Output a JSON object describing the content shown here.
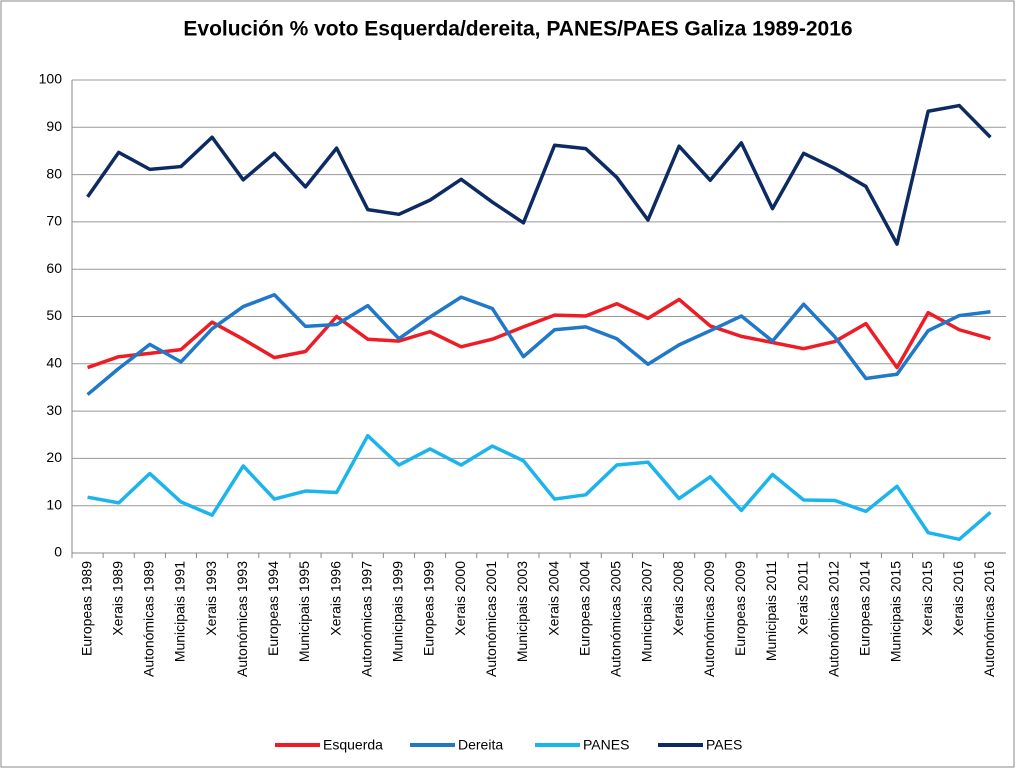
{
  "chart_data": {
    "type": "line",
    "title": "Evolución % voto Esquerda/dereita, PANES/PAES Galiza 1989-2016",
    "categories": [
      "Europeas 1989",
      "Xerais 1989",
      "Autonómicas 1989",
      "Municipais 1991",
      "Xerais 1993",
      "Autonómicas 1993",
      "Europeas 1994",
      "Municipais 1995",
      "Xerais 1996",
      "Autonómicas 1997",
      "Municipais 1999",
      "Europeas 1999",
      "Xerais 2000",
      "Autonómicas 2001",
      "Municipais 2003",
      "Xerais 2004",
      "Europeas 2004",
      "Autonómicas 2005",
      "Municipais 2007",
      "Xerais 2008",
      "Autonómicas 2009",
      "Europeas 2009",
      "Municipais 2011",
      "Xerais 2011",
      "Autonómicas 2012",
      "Europeas 2014",
      "Municipais 2015",
      "Xerais 2015",
      "Xerais 2016",
      "Autonómicas 2016"
    ],
    "series": [
      {
        "name": "Esquerda",
        "color": "#ee1c25",
        "values": [
          39.2,
          41.5,
          42.2,
          43,
          48.8,
          45.2,
          41.3,
          42.6,
          50,
          45.2,
          44.8,
          46.8,
          43.6,
          45.2,
          47.8,
          50.3,
          50.1,
          52.7,
          49.6,
          53.6,
          48,
          45.8,
          44.5,
          43.2,
          44.7,
          48.5,
          39.2,
          50.8,
          47.2,
          45.3
        ]
      },
      {
        "name": "Dereita",
        "color": "#1f78c8",
        "values": [
          33.5,
          39,
          44.1,
          40.4,
          47.4,
          52.1,
          54.6,
          47.9,
          48.3,
          52.3,
          45.3,
          49.9,
          54.1,
          51.7,
          41.5,
          47.2,
          47.8,
          45.3,
          39.9,
          44,
          47,
          50.1,
          44.8,
          52.6,
          45.7,
          36.9,
          37.8,
          47,
          50.2,
          51
        ]
      },
      {
        "name": "PANES",
        "color": "#1cb4ec",
        "values": [
          11.8,
          10.6,
          16.8,
          10.8,
          8,
          18.4,
          11.4,
          13.1,
          12.8,
          24.8,
          18.6,
          22,
          18.6,
          22.6,
          19.5,
          11.4,
          12.3,
          18.6,
          19.2,
          11.5,
          16.1,
          9,
          16.6,
          11.2,
          11.1,
          8.8,
          14.1,
          4.3,
          2.9,
          8.6
        ]
      },
      {
        "name": "PAES",
        "color": "#0d2a63",
        "values": [
          75.3,
          84.7,
          81.1,
          81.7,
          87.9,
          78.9,
          84.5,
          77.4,
          85.6,
          72.6,
          71.6,
          74.6,
          79,
          74.2,
          69.8,
          86.2,
          85.5,
          79.4,
          70.4,
          86,
          78.8,
          86.7,
          72.8,
          84.5,
          81.3,
          77.5,
          65.3,
          93.4,
          94.6,
          87.9
        ]
      }
    ],
    "ylim": [
      0,
      100
    ],
    "yticks": [
      0,
      10,
      20,
      30,
      40,
      50,
      60,
      70,
      80,
      90,
      100
    ],
    "grid": true,
    "legend": "bottom"
  }
}
